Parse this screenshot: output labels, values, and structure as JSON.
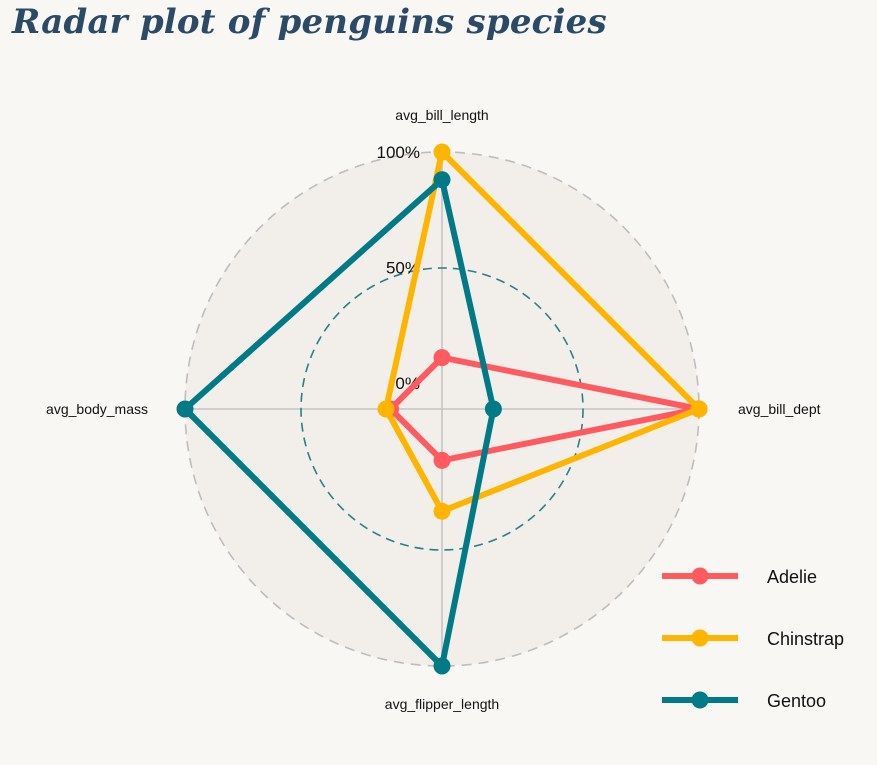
{
  "title": "Radar plot of penguins species",
  "chart_data": {
    "type": "radar",
    "axes": [
      "avg_bill_length",
      "avg_bill_dept",
      "avg_flipper_length",
      "avg_body_mass"
    ],
    "rlim": [
      0,
      100
    ],
    "ticks": [
      {
        "value": 0,
        "label": "0%"
      },
      {
        "value": 50,
        "label": "50%"
      },
      {
        "value": 100,
        "label": "100%"
      }
    ],
    "series": [
      {
        "name": "Adelie",
        "color": "#ff5a5f",
        "values": [
          11,
          100,
          11,
          11
        ]
      },
      {
        "name": "Chinstrap",
        "color": "#ffb400",
        "values": [
          100,
          100,
          33,
          13
        ]
      },
      {
        "name": "Gentoo",
        "color": "#007a87",
        "values": [
          88,
          11,
          100,
          100
        ]
      }
    ],
    "legend_position": "bottom-right",
    "colors": {
      "background": "#f9f7f4",
      "plot_area": "#f2efea",
      "outer_ring": "#bdbdbd",
      "mid_ring": "#2a7f8a",
      "axis_lines": "#c4c4c4",
      "title": "#2b4a66"
    }
  }
}
